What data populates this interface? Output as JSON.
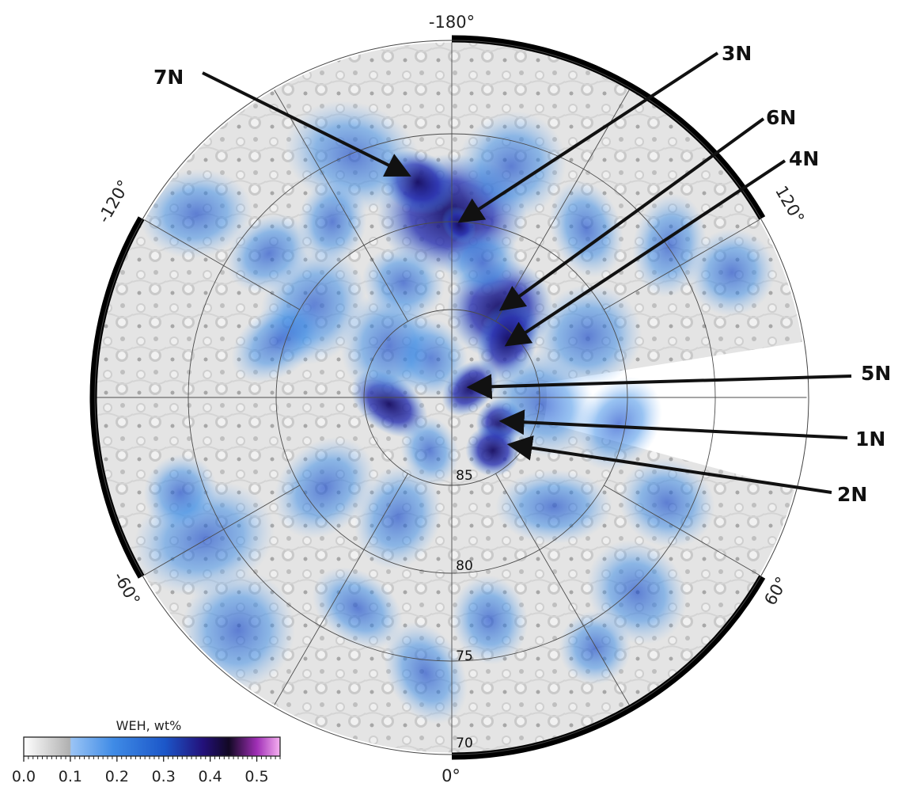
{
  "map": {
    "graticule": {
      "longitudes": [
        "-180°",
        "120°",
        "60°",
        "0°",
        "-60°",
        "-120°"
      ],
      "latitudes": [
        "85",
        "80",
        "75",
        "70"
      ]
    },
    "sites": [
      {
        "id": "site-7n",
        "label": "7N"
      },
      {
        "id": "site-3n",
        "label": "3N"
      },
      {
        "id": "site-6n",
        "label": "6N"
      },
      {
        "id": "site-4n",
        "label": "4N"
      },
      {
        "id": "site-5n",
        "label": "5N"
      },
      {
        "id": "site-1n",
        "label": "1N"
      },
      {
        "id": "site-2n",
        "label": "2N"
      }
    ]
  },
  "colorbar": {
    "title": "WEH, wt%",
    "ticks": [
      "0.0",
      "0.1",
      "0.2",
      "0.3",
      "0.4",
      "0.5"
    ],
    "min": 0.0,
    "max": 0.55,
    "colors": {
      "low": "#ffffff",
      "gray": "#b0b0b0",
      "blue": "#3f8be6",
      "mid_blue": "#1c57c9",
      "deep_blue": "#23107a",
      "black": "#120824",
      "purple": "#a02fb6",
      "pink": "#f7b1f1"
    }
  }
}
